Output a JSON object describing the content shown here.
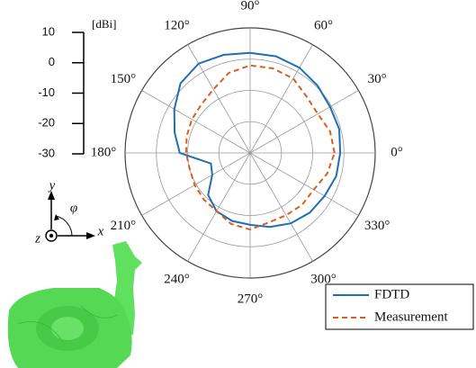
{
  "chart_data": {
    "type": "polar",
    "theta": [
      0,
      15,
      30,
      45,
      60,
      75,
      90,
      105,
      120,
      135,
      150,
      165,
      180,
      195,
      210,
      225,
      240,
      255,
      270,
      285,
      300,
      315,
      330,
      345
    ],
    "series": [
      {
        "name": "FDTD",
        "color": "#1f6fb4",
        "dash": "solid",
        "values": [
          -1.2,
          -0.5,
          -0.5,
          0.5,
          1.5,
          2,
          2,
          2.5,
          3,
          1.5,
          -2,
          -5,
          -7.5,
          -17,
          -16,
          -11,
          -8.5,
          -7.5,
          -7,
          -5.5,
          -4,
          -3,
          -2.5,
          -1.5
        ]
      },
      {
        "name": "Measurement",
        "color": "#d95f1e",
        "dash": "dashed",
        "values": [
          -3,
          -3.5,
          -5,
          -4.5,
          -2.5,
          -2,
          -2,
          -3.5,
          -6.5,
          -8,
          -8.5,
          -9,
          -9.5,
          -10,
          -9.5,
          -9,
          -8.5,
          -6.5,
          -5.5,
          -7,
          -7,
          -6.5,
          -6.5,
          -4.5
        ]
      }
    ],
    "rlim": [
      -30,
      10
    ],
    "rticks": [
      10,
      0,
      -10,
      -20,
      -30
    ],
    "r_unit": "[dBi]",
    "thetaticks": [
      {
        "value": 0,
        "label": "0°"
      },
      {
        "value": 30,
        "label": "30°"
      },
      {
        "value": 60,
        "label": "60°"
      },
      {
        "value": 90,
        "label": "90°"
      },
      {
        "value": 120,
        "label": "120°"
      },
      {
        "value": 150,
        "label": "150°"
      },
      {
        "value": 180,
        "label": "180°"
      },
      {
        "value": 210,
        "label": "210°"
      },
      {
        "value": 240,
        "label": "240°"
      },
      {
        "value": 270,
        "label": "270°"
      },
      {
        "value": 300,
        "label": "300°"
      },
      {
        "value": 330,
        "label": "330°"
      }
    ],
    "annotations": {
      "y": "y",
      "phi": "φ",
      "z": "z",
      "x": "x"
    },
    "legend": "lower right"
  }
}
